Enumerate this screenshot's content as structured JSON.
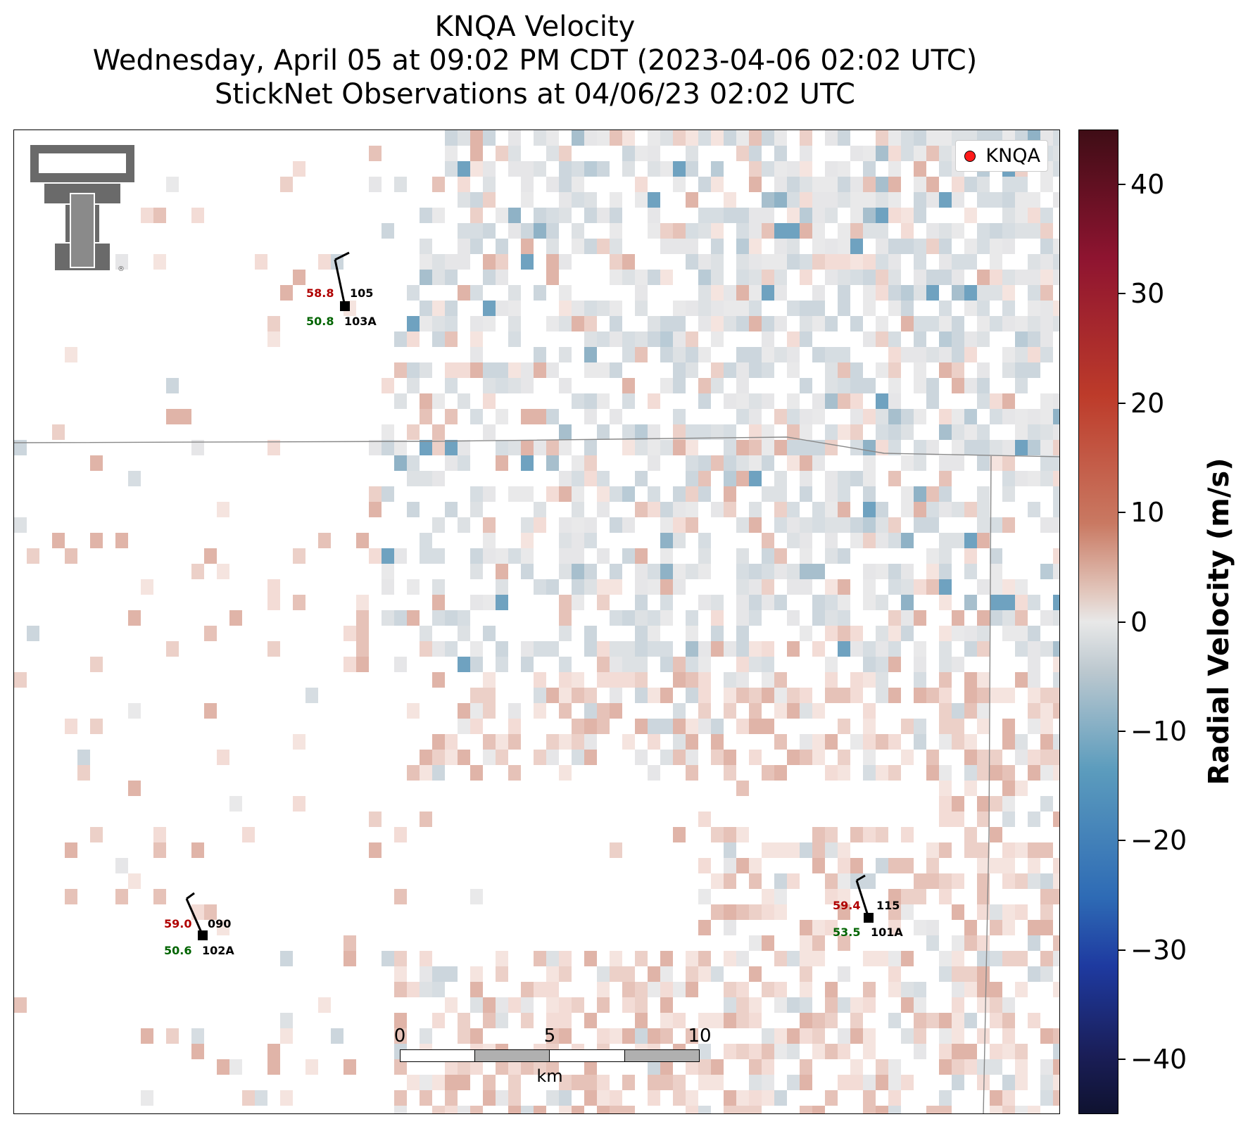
{
  "title": {
    "line1": "KNQA Velocity",
    "line2": "Wednesday, April 05 at 09:02 PM CDT (2023-04-06 02:02 UTC)",
    "line3": "StickNet Observations at 04/06/23 02:02 UTC"
  },
  "legend": {
    "label": "KNQA",
    "marker_color": "#ff1a1a"
  },
  "colorbar": {
    "title": "Radial Velocity (m/s)",
    "ticks": [
      "40",
      "30",
      "20",
      "10",
      "0",
      "−10",
      "−20",
      "−30",
      "−40"
    ],
    "range": [
      -45,
      45
    ]
  },
  "stations": [
    {
      "id": "105",
      "label": "103A",
      "temp": "58.8",
      "dew": "50.8"
    },
    {
      "id": "090",
      "label": "102A",
      "temp": "59.0",
      "dew": "50.6"
    },
    {
      "id": "115",
      "label": "101A",
      "temp": "59.4",
      "dew": "53.5"
    }
  ],
  "scalebar": {
    "ticks": [
      "0",
      "5",
      "10"
    ],
    "unit": "km"
  },
  "logo": {
    "icon": "double-t-logo-icon",
    "mark": "®"
  },
  "colors": {
    "inbound": "#5c9cbd",
    "outbound": "#c97962",
    "boundary": "#888888"
  }
}
